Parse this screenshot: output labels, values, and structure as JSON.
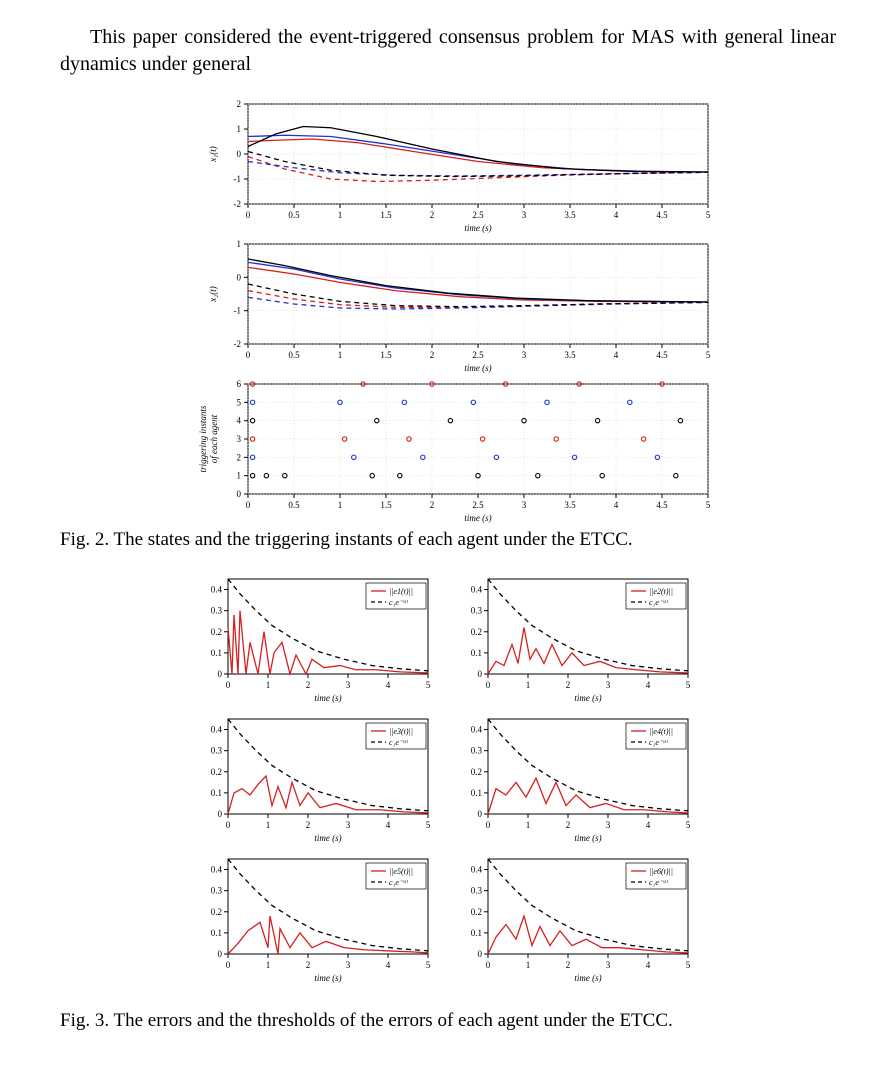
{
  "para1": "This paper considered the event-triggered consensus problem for MAS with general linear dynamics under general",
  "fig2": {
    "caption": "Fig. 2.   The states and the triggering instants of each agent under the ETCC.",
    "xlabel": "time (s)",
    "ylabel1": "x₁(t)",
    "ylabel2": "x₂(t)",
    "ylabel3a": "triggering instants",
    "ylabel3b": "of each agent",
    "xlim": [
      0,
      5
    ],
    "xtick_step": 0.5,
    "y1_lim": [
      -2,
      2
    ],
    "y1_tick_step": 1,
    "y2_lim": [
      -2,
      1
    ],
    "y2_tick_step": 1,
    "y3_lim": [
      0,
      6
    ],
    "y3_tick_step": 1,
    "label_fontsize": 9,
    "tick_fontsize": 9,
    "grid_color": "#c8c8c8",
    "background_color": "#ffffff",
    "colors": {
      "red": "#d62020",
      "blue": "#2030d0",
      "black": "#000000"
    },
    "panel1_series": [
      {
        "style": "solid",
        "color": "#d62020",
        "pts": [
          [
            0,
            0.5
          ],
          [
            0.3,
            0.55
          ],
          [
            0.7,
            0.6
          ],
          [
            1.2,
            0.45
          ],
          [
            1.8,
            0.1
          ],
          [
            2.5,
            -0.3
          ],
          [
            3.2,
            -0.55
          ],
          [
            4.0,
            -0.68
          ],
          [
            5.0,
            -0.72
          ]
        ]
      },
      {
        "style": "solid",
        "color": "#2030d0",
        "pts": [
          [
            0,
            0.7
          ],
          [
            0.4,
            0.75
          ],
          [
            0.9,
            0.7
          ],
          [
            1.5,
            0.4
          ],
          [
            2.2,
            0.0
          ],
          [
            2.9,
            -0.4
          ],
          [
            3.6,
            -0.62
          ],
          [
            4.4,
            -0.7
          ],
          [
            5.0,
            -0.72
          ]
        ]
      },
      {
        "style": "solid",
        "color": "#000000",
        "pts": [
          [
            0,
            0.3
          ],
          [
            0.3,
            0.8
          ],
          [
            0.6,
            1.1
          ],
          [
            0.9,
            1.05
          ],
          [
            1.4,
            0.7
          ],
          [
            2.0,
            0.2
          ],
          [
            2.7,
            -0.3
          ],
          [
            3.4,
            -0.58
          ],
          [
            4.2,
            -0.7
          ],
          [
            5.0,
            -0.72
          ]
        ]
      },
      {
        "style": "dashed",
        "color": "#d62020",
        "pts": [
          [
            0,
            -0.1
          ],
          [
            0.4,
            -0.6
          ],
          [
            0.9,
            -1.0
          ],
          [
            1.4,
            -1.1
          ],
          [
            2.0,
            -1.05
          ],
          [
            2.7,
            -0.95
          ],
          [
            3.4,
            -0.85
          ],
          [
            4.2,
            -0.77
          ],
          [
            5.0,
            -0.73
          ]
        ]
      },
      {
        "style": "dashed",
        "color": "#2030d0",
        "pts": [
          [
            0,
            -0.3
          ],
          [
            0.5,
            -0.55
          ],
          [
            1.0,
            -0.75
          ],
          [
            1.6,
            -0.85
          ],
          [
            2.3,
            -0.88
          ],
          [
            3.0,
            -0.85
          ],
          [
            3.8,
            -0.8
          ],
          [
            4.5,
            -0.76
          ],
          [
            5.0,
            -0.73
          ]
        ]
      },
      {
        "style": "dashed",
        "color": "#000000",
        "pts": [
          [
            0,
            0.1
          ],
          [
            0.4,
            -0.3
          ],
          [
            0.9,
            -0.65
          ],
          [
            1.5,
            -0.85
          ],
          [
            2.2,
            -0.9
          ],
          [
            2.9,
            -0.88
          ],
          [
            3.6,
            -0.82
          ],
          [
            4.3,
            -0.77
          ],
          [
            5.0,
            -0.73
          ]
        ]
      }
    ],
    "panel2_series": [
      {
        "style": "solid",
        "color": "#d62020",
        "pts": [
          [
            0,
            0.3
          ],
          [
            0.5,
            0.1
          ],
          [
            1.0,
            -0.15
          ],
          [
            1.6,
            -0.4
          ],
          [
            2.3,
            -0.58
          ],
          [
            3.0,
            -0.68
          ],
          [
            3.8,
            -0.72
          ],
          [
            5.0,
            -0.74
          ]
        ]
      },
      {
        "style": "solid",
        "color": "#2030d0",
        "pts": [
          [
            0,
            0.45
          ],
          [
            0.5,
            0.25
          ],
          [
            1.0,
            -0.05
          ],
          [
            1.6,
            -0.32
          ],
          [
            2.3,
            -0.52
          ],
          [
            3.0,
            -0.65
          ],
          [
            3.8,
            -0.71
          ],
          [
            5.0,
            -0.74
          ]
        ]
      },
      {
        "style": "solid",
        "color": "#000000",
        "pts": [
          [
            0,
            0.55
          ],
          [
            0.4,
            0.35
          ],
          [
            0.9,
            0.05
          ],
          [
            1.5,
            -0.25
          ],
          [
            2.2,
            -0.48
          ],
          [
            2.9,
            -0.62
          ],
          [
            3.7,
            -0.7
          ],
          [
            5.0,
            -0.74
          ]
        ]
      },
      {
        "style": "dashed",
        "color": "#d62020",
        "pts": [
          [
            0,
            -0.4
          ],
          [
            0.5,
            -0.65
          ],
          [
            1.0,
            -0.82
          ],
          [
            1.6,
            -0.9
          ],
          [
            2.3,
            -0.9
          ],
          [
            3.0,
            -0.86
          ],
          [
            3.8,
            -0.8
          ],
          [
            5.0,
            -0.75
          ]
        ]
      },
      {
        "style": "dashed",
        "color": "#2030d0",
        "pts": [
          [
            0,
            -0.6
          ],
          [
            0.5,
            -0.8
          ],
          [
            1.0,
            -0.92
          ],
          [
            1.6,
            -0.95
          ],
          [
            2.3,
            -0.92
          ],
          [
            3.0,
            -0.87
          ],
          [
            3.8,
            -0.81
          ],
          [
            5.0,
            -0.75
          ]
        ]
      },
      {
        "style": "dashed",
        "color": "#000000",
        "pts": [
          [
            0,
            -0.2
          ],
          [
            0.5,
            -0.5
          ],
          [
            1.0,
            -0.72
          ],
          [
            1.6,
            -0.85
          ],
          [
            2.3,
            -0.88
          ],
          [
            3.0,
            -0.85
          ],
          [
            3.8,
            -0.8
          ],
          [
            5.0,
            -0.75
          ]
        ]
      }
    ],
    "panel3_points": [
      {
        "color": "#000000",
        "agent": 1,
        "times": [
          0.05,
          0.2,
          0.4,
          1.35,
          1.65,
          2.5,
          3.15,
          3.85,
          4.65
        ]
      },
      {
        "color": "#2030d0",
        "agent": 2,
        "times": [
          0.05,
          1.15,
          1.9,
          2.7,
          3.55,
          4.45
        ]
      },
      {
        "color": "#d62020",
        "agent": 3,
        "times": [
          0.05,
          1.05,
          1.75,
          2.55,
          3.35,
          4.3
        ]
      },
      {
        "color": "#000000",
        "agent": 4,
        "times": [
          0.05,
          1.4,
          2.2,
          3.0,
          3.8,
          4.7
        ]
      },
      {
        "color": "#2030d0",
        "agent": 5,
        "times": [
          0.05,
          1.0,
          1.7,
          2.45,
          3.25,
          4.15
        ]
      },
      {
        "color": "#d62020",
        "agent": 6,
        "times": [
          0.05,
          1.25,
          2.0,
          2.8,
          3.6,
          4.5
        ]
      }
    ]
  },
  "fig3": {
    "caption": "Fig. 3.   The errors and the thresholds of the errors of each agent under the ETCC.",
    "xlabel": "time (s)",
    "xlim": [
      0,
      5
    ],
    "xtick_step": 1,
    "ylim": [
      0,
      0.45
    ],
    "ytick_vals": [
      0,
      0.1,
      0.2,
      0.3,
      0.4
    ],
    "label_fontsize": 9,
    "tick_fontsize": 9,
    "grid_color": "#c8c8c8",
    "background_color": "#ffffff",
    "threshold_color": "#000000",
    "error_color": "#d62020",
    "threshold_curve": [
      [
        0,
        0.45
      ],
      [
        0.3,
        0.38
      ],
      [
        0.7,
        0.3
      ],
      [
        1.1,
        0.23
      ],
      [
        1.6,
        0.17
      ],
      [
        2.2,
        0.11
      ],
      [
        2.9,
        0.07
      ],
      [
        3.6,
        0.04
      ],
      [
        4.3,
        0.025
      ],
      [
        5.0,
        0.015
      ]
    ],
    "legend_err_prefix": "||e",
    "legend_err_suffix": "(t)||",
    "legend_thr": "c₁e⁻ᵅᵗ",
    "panels": [
      {
        "idx": 1,
        "error": [
          [
            0,
            0.22
          ],
          [
            0.1,
            0
          ],
          [
            0.15,
            0.28
          ],
          [
            0.25,
            0
          ],
          [
            0.3,
            0.3
          ],
          [
            0.45,
            0
          ],
          [
            0.55,
            0.15
          ],
          [
            0.75,
            0
          ],
          [
            0.9,
            0.2
          ],
          [
            1.05,
            0
          ],
          [
            1.15,
            0.1
          ],
          [
            1.35,
            0.15
          ],
          [
            1.55,
            0
          ],
          [
            1.7,
            0.09
          ],
          [
            1.95,
            0
          ],
          [
            2.1,
            0.07
          ],
          [
            2.4,
            0.03
          ],
          [
            2.8,
            0.04
          ],
          [
            3.2,
            0.02
          ],
          [
            3.7,
            0.02
          ],
          [
            4.3,
            0.01
          ],
          [
            5.0,
            0.005
          ]
        ]
      },
      {
        "idx": 2,
        "error": [
          [
            0,
            0
          ],
          [
            0.2,
            0.06
          ],
          [
            0.4,
            0.04
          ],
          [
            0.6,
            0.14
          ],
          [
            0.75,
            0.05
          ],
          [
            0.9,
            0.22
          ],
          [
            1.05,
            0.07
          ],
          [
            1.2,
            0.12
          ],
          [
            1.4,
            0.05
          ],
          [
            1.6,
            0.14
          ],
          [
            1.85,
            0.04
          ],
          [
            2.1,
            0.1
          ],
          [
            2.4,
            0.04
          ],
          [
            2.8,
            0.06
          ],
          [
            3.2,
            0.03
          ],
          [
            3.7,
            0.02
          ],
          [
            4.3,
            0.01
          ],
          [
            5.0,
            0.005
          ]
        ]
      },
      {
        "idx": 3,
        "error": [
          [
            0,
            0
          ],
          [
            0.15,
            0.1
          ],
          [
            0.35,
            0.12
          ],
          [
            0.55,
            0.09
          ],
          [
            0.75,
            0.14
          ],
          [
            0.95,
            0.18
          ],
          [
            1.1,
            0.04
          ],
          [
            1.25,
            0.13
          ],
          [
            1.45,
            0.03
          ],
          [
            1.6,
            0.15
          ],
          [
            1.8,
            0.04
          ],
          [
            2.0,
            0.1
          ],
          [
            2.3,
            0.03
          ],
          [
            2.7,
            0.05
          ],
          [
            3.2,
            0.02
          ],
          [
            3.8,
            0.02
          ],
          [
            4.4,
            0.01
          ],
          [
            5.0,
            0.005
          ]
        ]
      },
      {
        "idx": 4,
        "error": [
          [
            0,
            0
          ],
          [
            0.2,
            0.12
          ],
          [
            0.45,
            0.09
          ],
          [
            0.7,
            0.15
          ],
          [
            0.95,
            0.08
          ],
          [
            1.2,
            0.17
          ],
          [
            1.45,
            0.05
          ],
          [
            1.7,
            0.15
          ],
          [
            1.95,
            0.04
          ],
          [
            2.2,
            0.09
          ],
          [
            2.55,
            0.03
          ],
          [
            2.95,
            0.05
          ],
          [
            3.4,
            0.02
          ],
          [
            3.9,
            0.02
          ],
          [
            4.5,
            0.01
          ],
          [
            5.0,
            0.005
          ]
        ]
      },
      {
        "idx": 5,
        "error": [
          [
            0,
            0
          ],
          [
            0.25,
            0.05
          ],
          [
            0.5,
            0.11
          ],
          [
            0.8,
            0.15
          ],
          [
            1.0,
            0.03
          ],
          [
            1.05,
            0.18
          ],
          [
            1.25,
            0
          ],
          [
            1.3,
            0.12
          ],
          [
            1.55,
            0.03
          ],
          [
            1.8,
            0.1
          ],
          [
            2.1,
            0.03
          ],
          [
            2.45,
            0.06
          ],
          [
            2.9,
            0.03
          ],
          [
            3.4,
            0.02
          ],
          [
            3.95,
            0.015
          ],
          [
            4.6,
            0.01
          ],
          [
            5.0,
            0.005
          ]
        ]
      },
      {
        "idx": 6,
        "error": [
          [
            0,
            0
          ],
          [
            0.2,
            0.08
          ],
          [
            0.45,
            0.14
          ],
          [
            0.7,
            0.07
          ],
          [
            0.9,
            0.18
          ],
          [
            1.1,
            0.04
          ],
          [
            1.3,
            0.13
          ],
          [
            1.55,
            0.04
          ],
          [
            1.8,
            0.11
          ],
          [
            2.1,
            0.04
          ],
          [
            2.45,
            0.07
          ],
          [
            2.85,
            0.03
          ],
          [
            3.3,
            0.03
          ],
          [
            3.85,
            0.02
          ],
          [
            4.45,
            0.01
          ],
          [
            5.0,
            0.005
          ]
        ]
      }
    ]
  }
}
